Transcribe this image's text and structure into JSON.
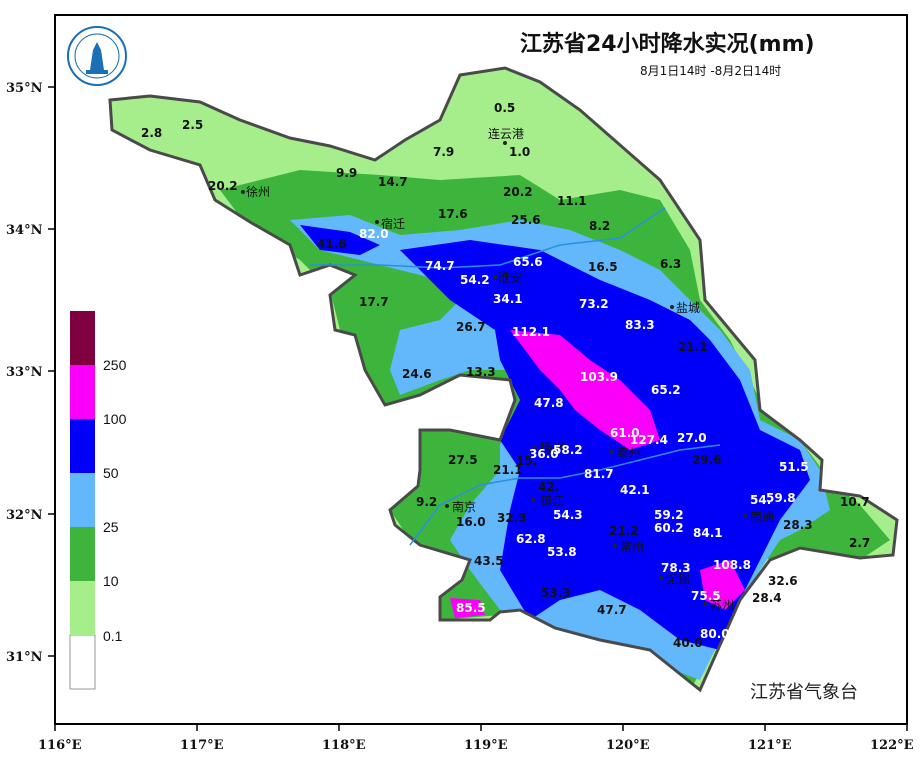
{
  "title": "江苏省24小时降水实况(mm)",
  "subtitle": "8月1日14时 -8月2日14时",
  "agency": "江苏省气象台",
  "logo_text": "江苏省气象台",
  "axes": {
    "x_ticks": [
      "116°E",
      "117°E",
      "118°E",
      "119°E",
      "120°E",
      "121°E",
      "122°E"
    ],
    "y_ticks": [
      "35°N",
      "34°N",
      "33°N",
      "32°N",
      "31°N"
    ]
  },
  "legend": {
    "classes": [
      {
        "label": "0.1",
        "color": "#ffffff"
      },
      {
        "label": "10",
        "color": "#a6ee8c"
      },
      {
        "label": "25",
        "color": "#3db53d"
      },
      {
        "label": "50",
        "color": "#62b8fb"
      },
      {
        "label": "100",
        "color": "#0000fa"
      },
      {
        "label": "250",
        "color": "#fa00fa"
      },
      {
        "label": "",
        "color": "#7f0040"
      }
    ]
  },
  "cities": [
    "连云港",
    "宿迁",
    "淮安",
    "盐城",
    "扬州",
    "泰州",
    "南京",
    "镇江",
    "常州",
    "南通",
    "无锡",
    "苏州",
    "徐州"
  ],
  "stations": [
    "0.5",
    "2.8",
    "2.5",
    "1.0",
    "7.9",
    "9.9",
    "14.7",
    "20.2",
    "20.2",
    "11.1",
    "17.6",
    "25.6",
    "8.2",
    "82.0",
    "41.6",
    "74.7",
    "54.2",
    "65.6",
    "16.5",
    "6.3",
    "34.1",
    "73.2",
    "17.7",
    "26.7",
    "112.1",
    "83.3",
    "21.1",
    "24.6",
    "13.3",
    "103.9",
    "65.2",
    "47.8",
    "61.0",
    "127.4",
    "27.0",
    "27.5",
    "58.2",
    "36.0",
    "15.",
    "29.6",
    "51.5",
    "21.1",
    "81.7",
    "42.",
    "42.1",
    "54.",
    "59.8",
    "10.7",
    "9.2",
    "16.0",
    "32.3",
    "54.3",
    "59.2",
    "60.2",
    "84.1",
    "28.3",
    "2.7",
    "62.8",
    "21.2",
    "53.8",
    "43.5",
    "78.3",
    "108.8",
    "32.6",
    "53.3",
    "75.5",
    "28.4",
    "85.5",
    "47.7",
    "80.0",
    "40.0"
  ],
  "colors": {
    "frame": "#000000",
    "province_outline": "#4a4a4a",
    "river": "#2a8fe0",
    "city_boundary": "#7a7a7a"
  }
}
